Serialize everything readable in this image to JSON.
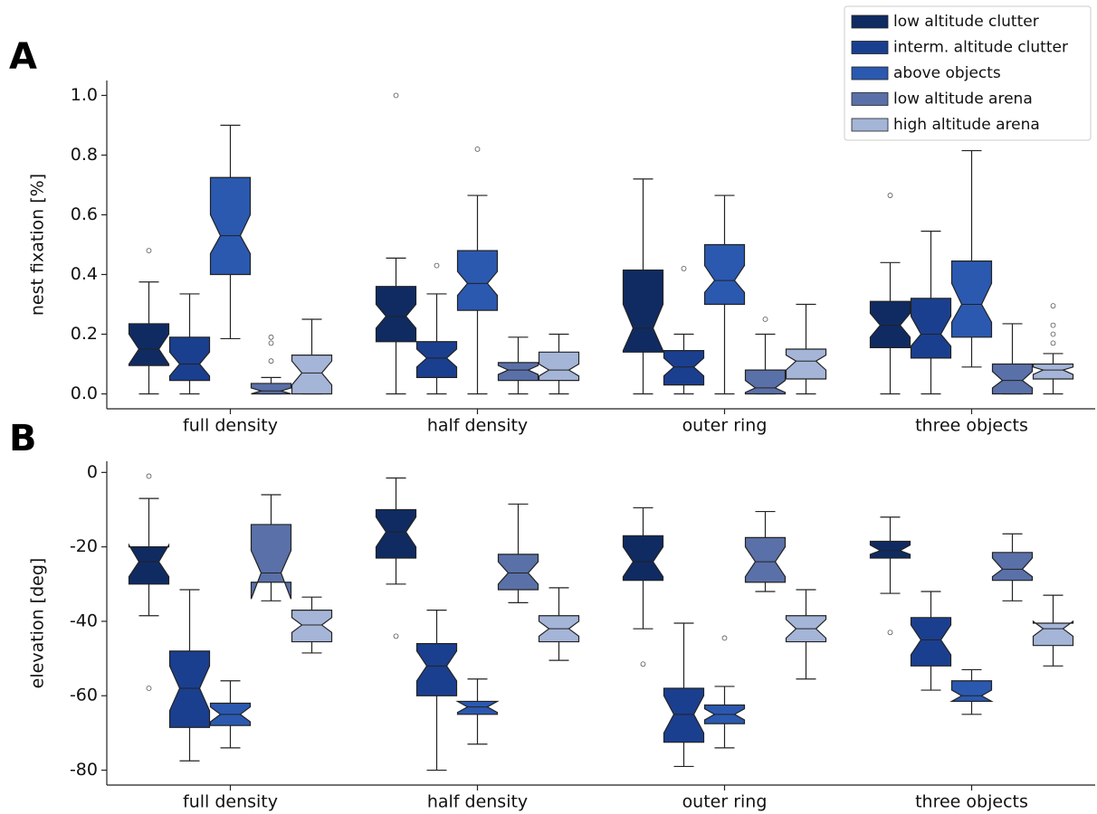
{
  "chart_data": [
    {
      "type": "box",
      "panel": "A",
      "ylabel": "nest fixation [%]",
      "categories": [
        "full density",
        "half density",
        "outer ring",
        "three objects"
      ],
      "ylim": [
        -0.05,
        1.05
      ],
      "yticks": [
        {
          "value": 0,
          "label": "0.0"
        },
        {
          "value": 0.2,
          "label": "0.2"
        },
        {
          "value": 0.4,
          "label": "0.4"
        },
        {
          "value": 0.6,
          "label": "0.6"
        },
        {
          "value": 0.8,
          "label": "0.8"
        },
        {
          "value": 1.0,
          "label": "1.0"
        }
      ],
      "legend": "upper right",
      "series": [
        {
          "name": "low altitude clutter",
          "color": "#0f2b62",
          "boxes": [
            {
              "whislo": 0,
              "q1": 0.095,
              "med": 0.15,
              "q3": 0.235,
              "whishi": 0.375,
              "notch": [
                0.1,
                0.2
              ],
              "fliers": [
                0.48
              ]
            },
            {
              "whislo": 0,
              "q1": 0.175,
              "med": 0.26,
              "q3": 0.36,
              "whishi": 0.455,
              "notch": [
                0.22,
                0.3
              ],
              "fliers": [
                1.0
              ]
            },
            {
              "whislo": 0,
              "q1": 0.14,
              "med": 0.22,
              "q3": 0.415,
              "whishi": 0.72,
              "notch": [
                0.145,
                0.3
              ],
              "fliers": []
            },
            {
              "whislo": 0,
              "q1": 0.155,
              "med": 0.23,
              "q3": 0.31,
              "whishi": 0.44,
              "notch": [
                0.19,
                0.27
              ],
              "fliers": [
                0.665
              ]
            }
          ]
        },
        {
          "name": "interm. altitude clutter",
          "color": "#1b3f8f",
          "boxes": [
            {
              "whislo": 0,
              "q1": 0.045,
              "med": 0.1,
              "q3": 0.19,
              "whishi": 0.335,
              "notch": [
                0.06,
                0.14
              ],
              "fliers": []
            },
            {
              "whislo": 0,
              "q1": 0.055,
              "med": 0.12,
              "q3": 0.175,
              "whishi": 0.335,
              "notch": [
                0.09,
                0.15
              ],
              "fliers": [
                0.43
              ]
            },
            {
              "whislo": 0,
              "q1": 0.03,
              "med": 0.09,
              "q3": 0.145,
              "whishi": 0.2,
              "notch": [
                0.06,
                0.12
              ],
              "fliers": [
                0.42
              ]
            },
            {
              "whislo": 0,
              "q1": 0.12,
              "med": 0.2,
              "q3": 0.32,
              "whishi": 0.545,
              "notch": [
                0.16,
                0.26
              ],
              "fliers": []
            }
          ]
        },
        {
          "name": "above objects",
          "color": "#2b59b0",
          "boxes": [
            {
              "whislo": 0.185,
              "q1": 0.4,
              "med": 0.53,
              "q3": 0.725,
              "whishi": 0.9,
              "notch": [
                0.47,
                0.6
              ],
              "fliers": []
            },
            {
              "whislo": 0,
              "q1": 0.28,
              "med": 0.37,
              "q3": 0.48,
              "whishi": 0.665,
              "notch": [
                0.33,
                0.41
              ],
              "fliers": [
                0.82
              ]
            },
            {
              "whislo": 0,
              "q1": 0.3,
              "med": 0.38,
              "q3": 0.5,
              "whishi": 0.665,
              "notch": [
                0.34,
                0.43
              ],
              "fliers": []
            },
            {
              "whislo": 0.09,
              "q1": 0.19,
              "med": 0.3,
              "q3": 0.445,
              "whishi": 0.815,
              "notch": [
                0.24,
                0.37
              ],
              "fliers": []
            }
          ]
        },
        {
          "name": "low altitude arena",
          "color": "#5a70a8",
          "boxes": [
            {
              "whislo": 0,
              "q1": 0,
              "med": 0.01,
              "q3": 0.035,
              "whishi": 0.055,
              "notch": [
                0,
                0.02
              ],
              "fliers": [
                0.11,
                0.17,
                0.19
              ]
            },
            {
              "whislo": 0,
              "q1": 0.045,
              "med": 0.08,
              "q3": 0.105,
              "whishi": 0.19,
              "notch": [
                0.065,
                0.095
              ],
              "fliers": []
            },
            {
              "whislo": 0,
              "q1": 0,
              "med": 0.02,
              "q3": 0.08,
              "whishi": 0.2,
              "notch": [
                0.005,
                0.045
              ],
              "fliers": [
                0.25
              ]
            },
            {
              "whislo": 0,
              "q1": 0,
              "med": 0.045,
              "q3": 0.1,
              "whishi": 0.235,
              "notch": [
                0.02,
                0.075
              ],
              "fliers": []
            }
          ]
        },
        {
          "name": "high altitude arena",
          "color": "#a5b5d8",
          "boxes": [
            {
              "whislo": 0,
              "q1": 0,
              "med": 0.07,
              "q3": 0.13,
              "whishi": 0.25,
              "notch": [
                0.03,
                0.11
              ],
              "fliers": []
            },
            {
              "whislo": 0,
              "q1": 0.045,
              "med": 0.08,
              "q3": 0.14,
              "whishi": 0.2,
              "notch": [
                0.06,
                0.1
              ],
              "fliers": []
            },
            {
              "whislo": 0,
              "q1": 0.05,
              "med": 0.11,
              "q3": 0.15,
              "whishi": 0.3,
              "notch": [
                0.08,
                0.13
              ],
              "fliers": []
            },
            {
              "whislo": 0,
              "q1": 0.05,
              "med": 0.08,
              "q3": 0.1,
              "whishi": 0.135,
              "notch": [
                0.065,
                0.09
              ],
              "fliers": [
                0.17,
                0.2,
                0.23,
                0.295
              ]
            }
          ]
        }
      ]
    },
    {
      "type": "box",
      "panel": "B",
      "ylabel": "elevation [deg]",
      "categories": [
        "full density",
        "half density",
        "outer ring",
        "three objects"
      ],
      "ylim": [
        -84,
        3
      ],
      "yticks": [
        -80,
        -60,
        -40,
        -20,
        0
      ],
      "series": [
        {
          "color": "#0f2b62",
          "boxes": [
            {
              "whislo": -38.5,
              "q1": -30,
              "med": -24,
              "q3": -20,
              "whishi": -7,
              "notch": [
                -28,
                -19.5
              ],
              "fliers": [
                -58,
                -1
              ]
            },
            {
              "whislo": -30,
              "q1": -23,
              "med": -16,
              "q3": -10,
              "whishi": -1.5,
              "notch": [
                -20,
                -12
              ],
              "fliers": [
                -44
              ]
            },
            {
              "whislo": -42,
              "q1": -29,
              "med": -24,
              "q3": -17,
              "whishi": -9.5,
              "notch": [
                -28,
                -20
              ],
              "fliers": [
                -51.5
              ]
            },
            {
              "whislo": -32.5,
              "q1": -23,
              "med": -21,
              "q3": -18.5,
              "whishi": -12,
              "notch": [
                -22,
                -19.5
              ],
              "fliers": [
                -43
              ]
            }
          ]
        },
        {
          "color": "#1b3f8f",
          "boxes": [
            {
              "whislo": -77.5,
              "q1": -68.5,
              "med": -58,
              "q3": -48,
              "whishi": -31.5,
              "notch": [
                -64,
                -52
              ],
              "fliers": []
            },
            {
              "whislo": -80,
              "q1": -60,
              "med": -52,
              "q3": -46,
              "whishi": -37,
              "notch": [
                -56,
                -48
              ],
              "fliers": []
            },
            {
              "whislo": -79,
              "q1": -72.5,
              "med": -65,
              "q3": -58,
              "whishi": -40.5,
              "notch": [
                -70,
                -60
              ],
              "fliers": []
            },
            {
              "whislo": -58.5,
              "q1": -52,
              "med": -45,
              "q3": -39,
              "whishi": -32,
              "notch": [
                -49,
                -41
              ],
              "fliers": []
            }
          ]
        },
        {
          "color": "#2b59b0",
          "boxes": [
            {
              "whislo": -74,
              "q1": -68,
              "med": -65,
              "q3": -62,
              "whishi": -56,
              "notch": [
                -67,
                -63
              ],
              "fliers": []
            },
            {
              "whislo": -73,
              "q1": -65,
              "med": -63,
              "q3": -61.5,
              "whishi": -55.5,
              "notch": [
                -64.5,
                -61.5
              ],
              "fliers": []
            },
            {
              "whislo": -74,
              "q1": -67.5,
              "med": -65,
              "q3": -62.5,
              "whishi": -57.5,
              "notch": [
                -66.5,
                -63.5
              ],
              "fliers": [
                -44.5
              ]
            },
            {
              "whislo": -65,
              "q1": -61.5,
              "med": -60,
              "q3": -56,
              "whishi": -53,
              "notch": [
                -61.5,
                -58.5
              ],
              "fliers": []
            }
          ]
        },
        {
          "color": "#5a70a8",
          "boxes": [
            {
              "whislo": -34.5,
              "q1": -29.5,
              "med": -27,
              "q3": -14,
              "whishi": -6,
              "notch": [
                -34,
                -21
              ],
              "fliers": []
            },
            {
              "whislo": -35,
              "q1": -31.5,
              "med": -27,
              "q3": -22,
              "whishi": -8.5,
              "notch": [
                -30,
                -24
              ],
              "fliers": []
            },
            {
              "whislo": -32,
              "q1": -29.5,
              "med": -24,
              "q3": -17.5,
              "whishi": -10.5,
              "notch": [
                -28,
                -20
              ],
              "fliers": []
            },
            {
              "whislo": -34.5,
              "q1": -29,
              "med": -26,
              "q3": -21.5,
              "whishi": -16.5,
              "notch": [
                -28,
                -23
              ],
              "fliers": []
            }
          ]
        },
        {
          "color": "#a5b5d8",
          "boxes": [
            {
              "whislo": -48.5,
              "q1": -45.5,
              "med": -41,
              "q3": -37,
              "whishi": -33.5,
              "notch": [
                -43,
                -39
              ],
              "fliers": []
            },
            {
              "whislo": -50.5,
              "q1": -45.5,
              "med": -42,
              "q3": -38.5,
              "whishi": -31,
              "notch": [
                -44,
                -40
              ],
              "fliers": []
            },
            {
              "whislo": -55.5,
              "q1": -45.5,
              "med": -42,
              "q3": -38.5,
              "whishi": -31.5,
              "notch": [
                -44.5,
                -39.5
              ],
              "fliers": []
            },
            {
              "whislo": -52,
              "q1": -46.5,
              "med": -42,
              "q3": -40.5,
              "whishi": -33,
              "notch": [
                -44,
                -40
              ],
              "fliers": []
            }
          ]
        }
      ]
    }
  ]
}
